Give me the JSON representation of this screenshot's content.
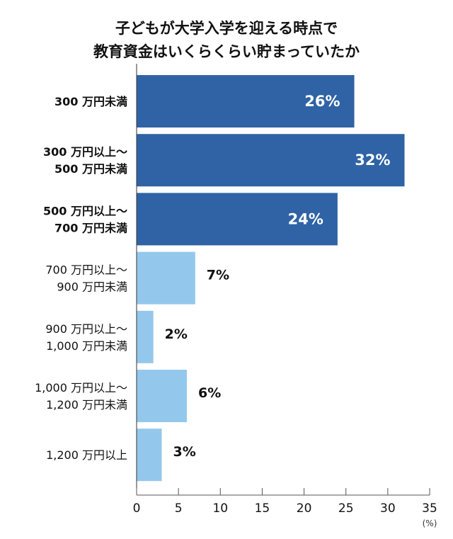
{
  "chart_data": {
    "type": "bar",
    "orientation": "horizontal",
    "title": [
      "子どもが大学入学を迎える時点で",
      "教育資金はいくらくらい貯まっていたか"
    ],
    "categories": [
      [
        "300 万円未満"
      ],
      [
        "300 万円以上～",
        "500 万円未満"
      ],
      [
        "500 万円以上～",
        "700 万円未満"
      ],
      [
        "700 万円以上～",
        "900 万円未満"
      ],
      [
        "900 万円以上～",
        "1,000 万円未満"
      ],
      [
        "1,000 万円以上～",
        "1,200 万円未満"
      ],
      [
        "1,200 万円以上"
      ]
    ],
    "values": [
      26,
      32,
      24,
      7,
      2,
      6,
      3
    ],
    "data_labels": [
      "26%",
      "32%",
      "24%",
      "7%",
      "2%",
      "6%",
      "3%"
    ],
    "xlim": [
      0,
      35
    ],
    "xticks": [
      0,
      5,
      10,
      15,
      20,
      25,
      30,
      35
    ],
    "xunit": "(%)",
    "grid": false,
    "colors": {
      "highlight": "#2f63a5",
      "normal": "#93c8ec"
    },
    "highlighted": [
      true,
      true,
      true,
      false,
      false,
      false,
      false
    ]
  }
}
